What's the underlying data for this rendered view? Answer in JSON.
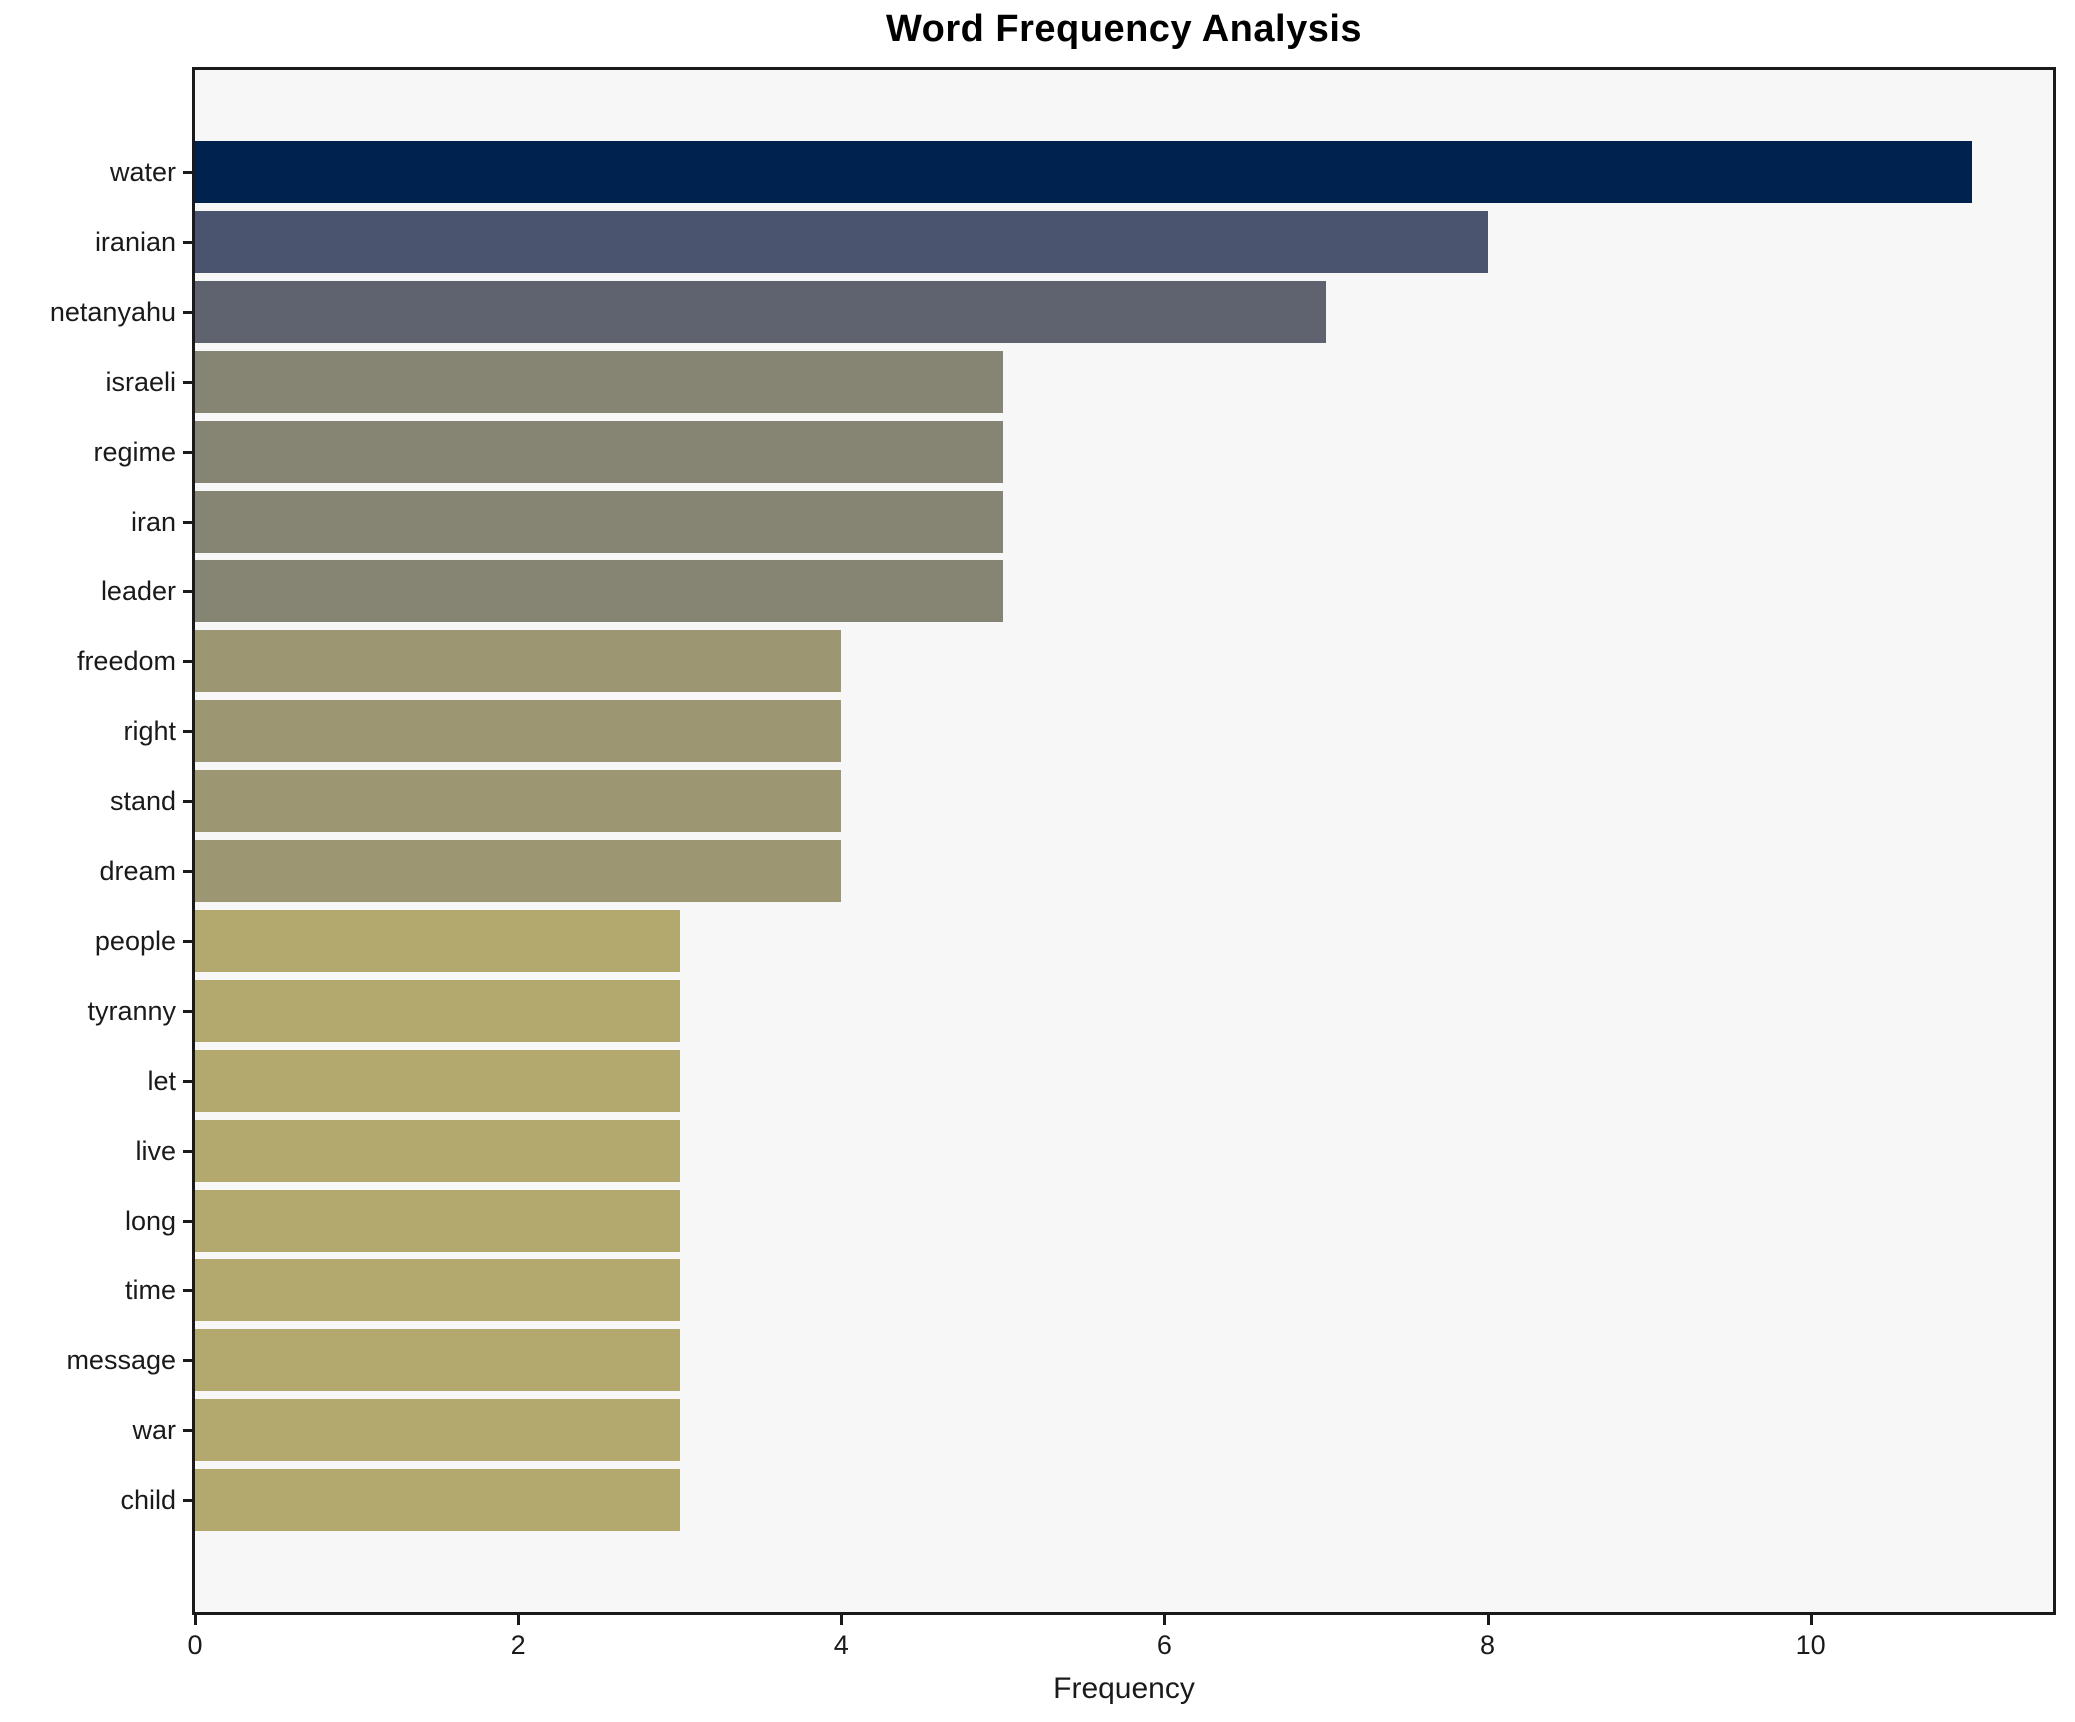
{
  "chart_data": {
    "type": "bar",
    "orientation": "horizontal",
    "title": "Word Frequency Analysis",
    "xlabel": "Frequency",
    "ylabel": "",
    "categories": [
      "water",
      "iranian",
      "netanyahu",
      "israeli",
      "regime",
      "iran",
      "leader",
      "freedom",
      "right",
      "stand",
      "dream",
      "people",
      "tyranny",
      "let",
      "live",
      "long",
      "time",
      "message",
      "war",
      "child"
    ],
    "values": [
      11,
      8,
      7,
      5,
      5,
      5,
      5,
      4,
      4,
      4,
      4,
      3,
      3,
      3,
      3,
      3,
      3,
      3,
      3,
      3
    ],
    "bar_colors": [
      "#00224e",
      "#4a546e",
      "#5f636f",
      "#868573",
      "#868573",
      "#868573",
      "#868573",
      "#9d9672",
      "#9d9672",
      "#9d9672",
      "#9d9672",
      "#b3a96e",
      "#b3a96e",
      "#b3a96e",
      "#b3a96e",
      "#b3a96e",
      "#b3a96e",
      "#b3a96e",
      "#b3a96e",
      "#b3a96e"
    ],
    "xticks": [
      0,
      2,
      4,
      6,
      8,
      10
    ],
    "xlim": [
      0,
      11.5
    ],
    "grid": false,
    "legend": null,
    "colors": {
      "plot_background": "#f7f7f7",
      "figure_background": "#ffffff",
      "spine": "#1a1a1a",
      "text": "#000000"
    }
  }
}
